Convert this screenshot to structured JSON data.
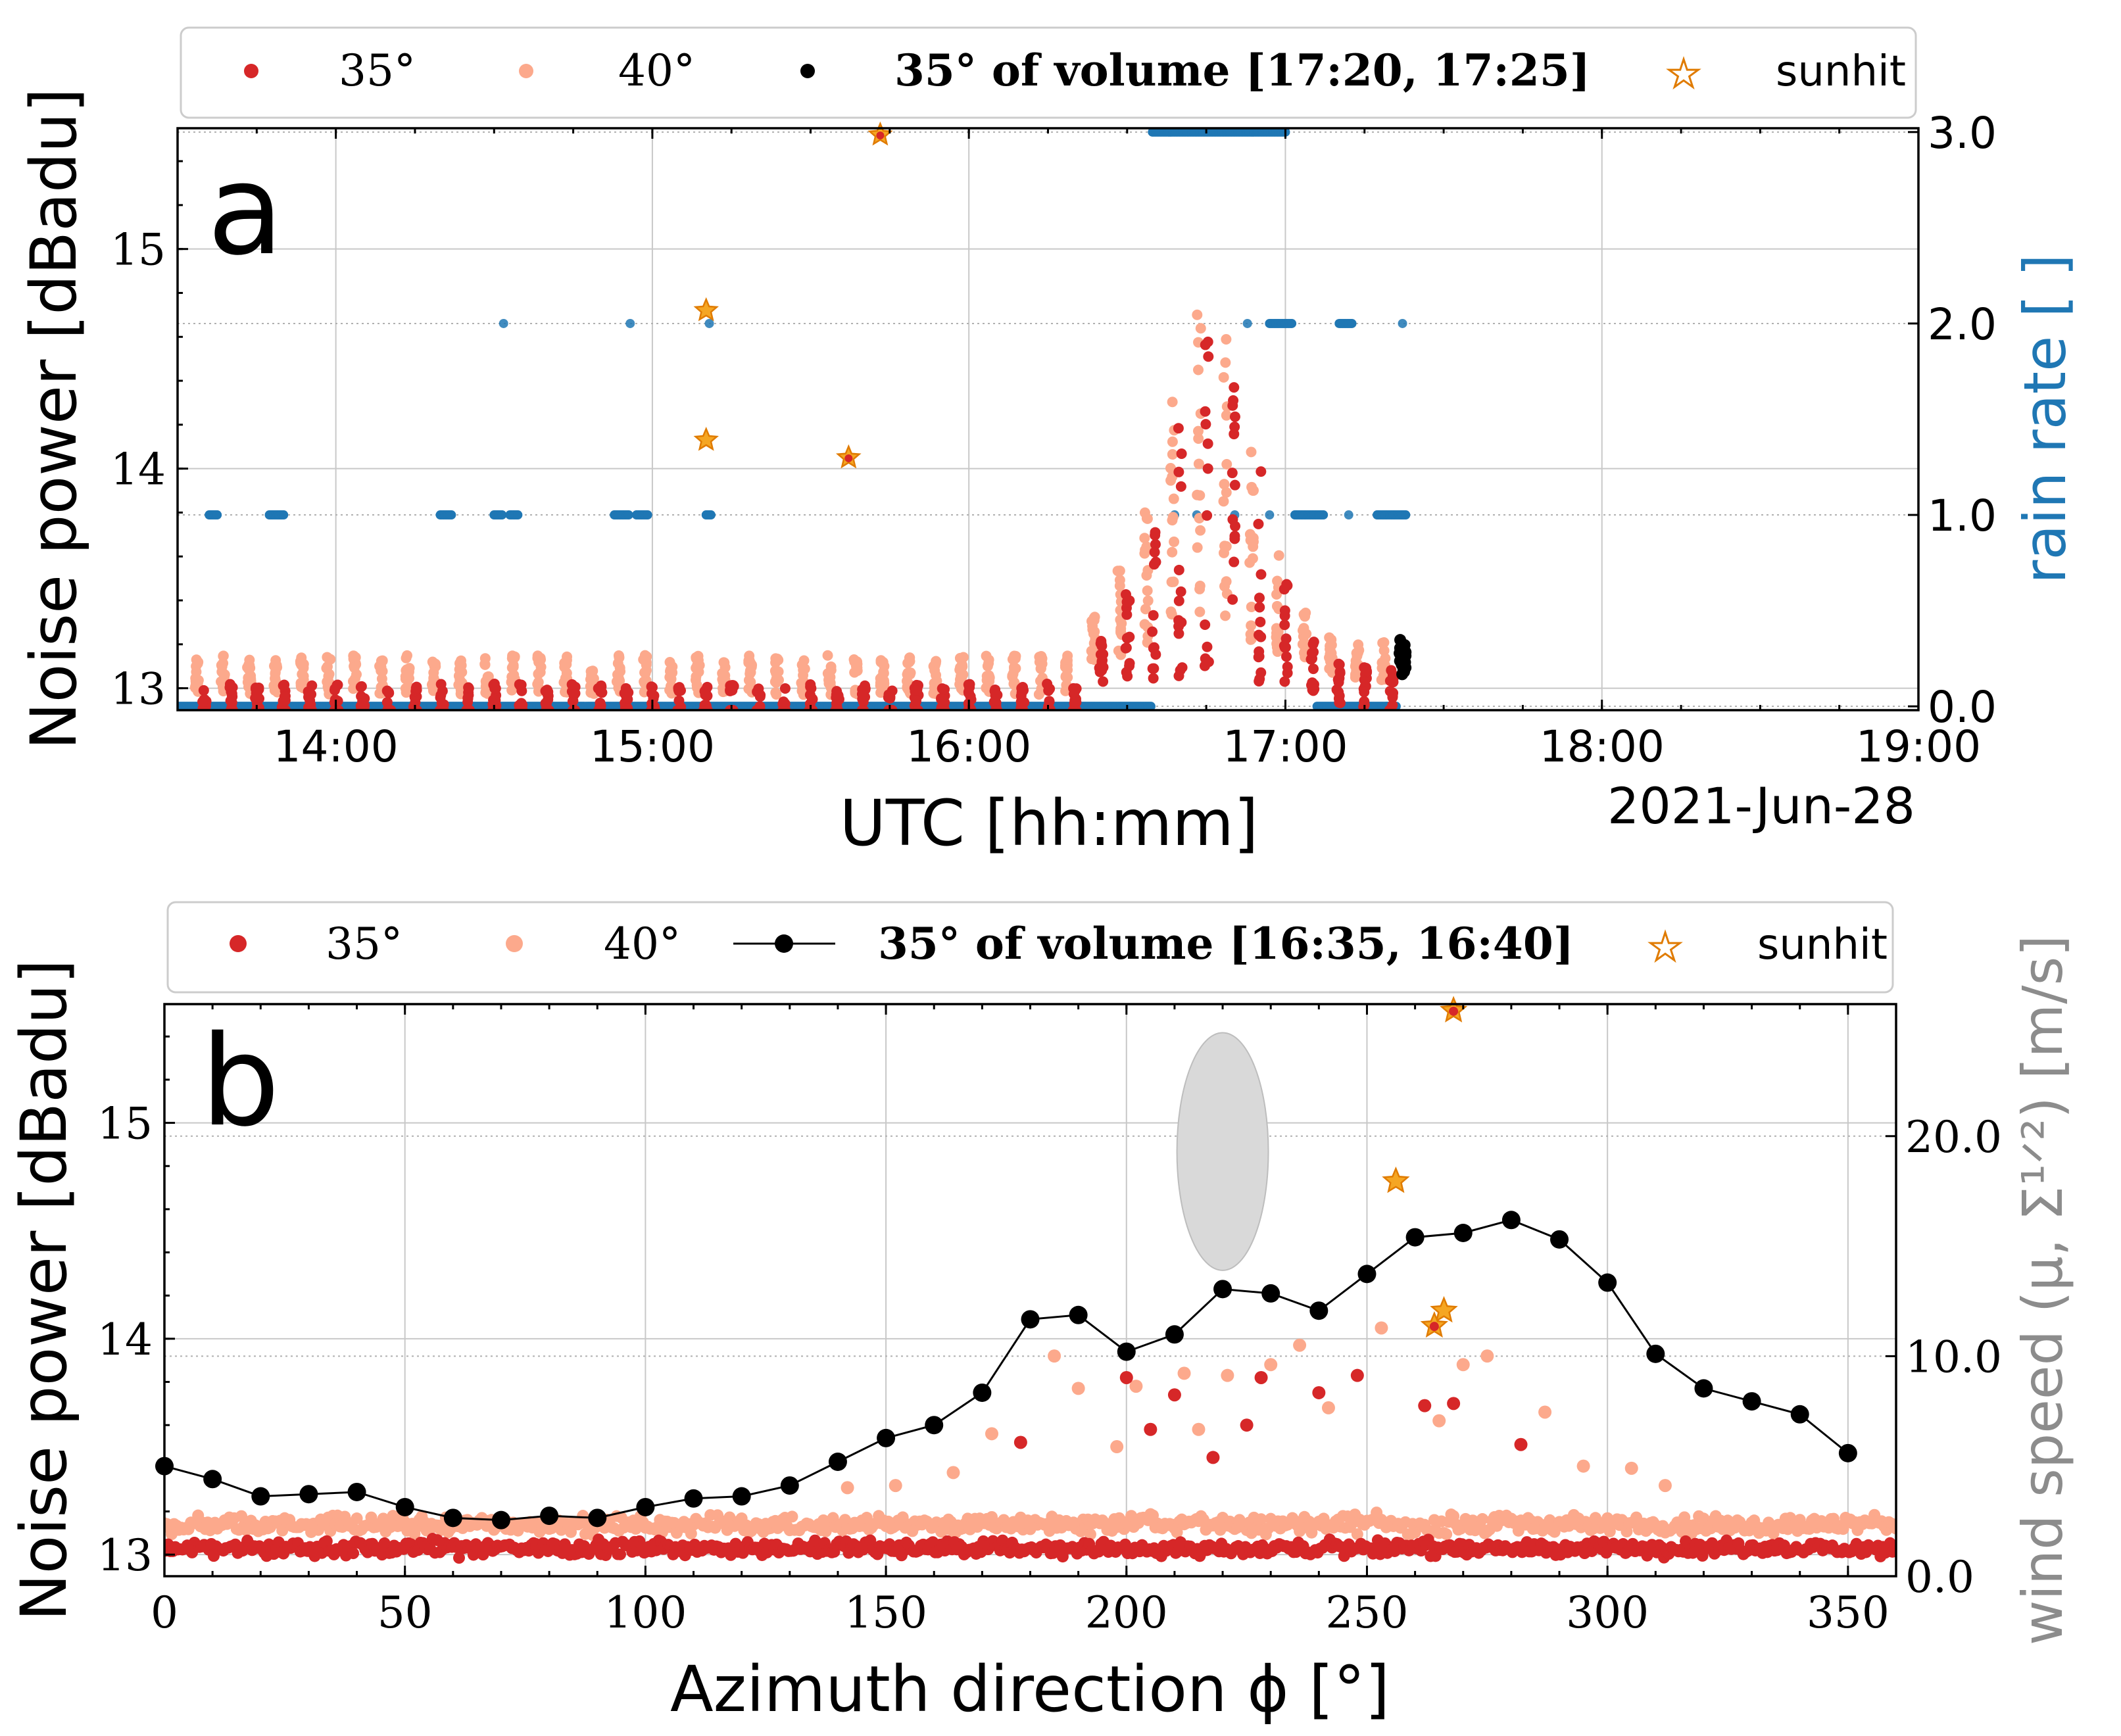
{
  "colors": {
    "red35": "#d62728",
    "salmon40": "#fca98c",
    "black": "#000000",
    "rain": "#1f77b4",
    "wind": "#8c8c8c",
    "sun_fill": "#f5a623",
    "sun_edge": "#e07b00",
    "ellipse": "#d9d9d9"
  },
  "chart_data": [
    {
      "panel": "a",
      "type": "scatter",
      "panel_label": "a",
      "xlabel": "UTC [hh:mm]",
      "ylabel": "Noise power [dBadu]",
      "y2label": "rain rate [ ]",
      "date_label": "2021-Jun-28",
      "xlim": [
        13.5,
        19.0
      ],
      "ylim": [
        12.9,
        15.55
      ],
      "y2lim": [
        -0.02,
        3.02
      ],
      "xticks": [
        14,
        15,
        16,
        17,
        18,
        19
      ],
      "xtick_labels": [
        "14:00",
        "15:00",
        "16:00",
        "17:00",
        "18:00",
        "19:00"
      ],
      "yticks": [
        13,
        14,
        15
      ],
      "ytick_labels": [
        "13",
        "14",
        "15"
      ],
      "y2ticks": [
        0.0,
        1.0,
        2.0,
        3.0
      ],
      "y2tick_labels": [
        "0.0",
        "1.0",
        "2.0",
        "3.0"
      ],
      "legend": {
        "s35": "35°",
        "s40": "40°",
        "vol": "35° of volume [17:20, 17:25]",
        "sun": "sunhit"
      },
      "noise_profile": [
        [
          13.5,
          13.05
        ],
        [
          16.3,
          13.05
        ],
        [
          16.45,
          13.4
        ],
        [
          16.55,
          13.75
        ],
        [
          16.65,
          14.4
        ],
        [
          16.72,
          14.75
        ],
        [
          16.8,
          14.5
        ],
        [
          16.9,
          13.95
        ],
        [
          17.0,
          13.35
        ],
        [
          17.1,
          13.15
        ],
        [
          17.37,
          13.1
        ]
      ],
      "volume_35": {
        "x": 17.37,
        "ymin": 13.05,
        "ymax": 13.22
      },
      "sunhits": [
        {
          "x": 15.17,
          "y": 14.72,
          "hit35": false
        },
        {
          "x": 15.17,
          "y": 14.13,
          "hit35": false
        },
        {
          "x": 15.62,
          "y": 14.05,
          "hit35": true
        },
        {
          "x": 15.72,
          "y": 15.52,
          "hit35": true
        }
      ],
      "rain_segments": [
        {
          "from": 13.5,
          "to": 16.58,
          "value": 0.0
        },
        {
          "from": 17.1,
          "to": 17.35,
          "value": 0.0
        },
        {
          "from": 16.58,
          "to": 17.0,
          "value": 3.0
        },
        {
          "from": 13.6,
          "to": 13.63,
          "value": 1.0
        },
        {
          "from": 13.79,
          "to": 13.84,
          "value": 1.0
        },
        {
          "from": 14.33,
          "to": 14.37,
          "value": 1.0
        },
        {
          "from": 14.5,
          "to": 14.53,
          "value": 1.0
        },
        {
          "from": 14.55,
          "to": 14.58,
          "value": 1.0
        },
        {
          "from": 14.88,
          "to": 14.93,
          "value": 1.0
        },
        {
          "from": 14.95,
          "to": 14.99,
          "value": 1.0
        },
        {
          "from": 15.17,
          "to": 15.19,
          "value": 1.0
        },
        {
          "from": 17.03,
          "to": 17.12,
          "value": 1.0
        },
        {
          "from": 17.29,
          "to": 17.38,
          "value": 1.0
        },
        {
          "from": 16.95,
          "to": 17.02,
          "value": 2.0
        },
        {
          "from": 17.17,
          "to": 17.21,
          "value": 2.0
        }
      ],
      "rain_points": [
        [
          14.53,
          2.0
        ],
        [
          14.93,
          2.0
        ],
        [
          15.18,
          2.0
        ],
        [
          16.88,
          2.0
        ],
        [
          17.37,
          2.0
        ],
        [
          16.65,
          1.0
        ],
        [
          16.72,
          1.0
        ],
        [
          16.84,
          1.0
        ],
        [
          16.95,
          1.0
        ],
        [
          17.2,
          1.0
        ],
        [
          17.17,
          0.0
        ],
        [
          17.23,
          0.0
        ],
        [
          17.32,
          0.0
        ]
      ]
    },
    {
      "panel": "b",
      "type": "scatter",
      "panel_label": "b",
      "xlabel": "Azimuth direction ϕ [°]",
      "ylabel": "Noise power [dBadu]",
      "y2label": "wind speed (μ, Σ¹ᐟ²) [m/s]",
      "xlim": [
        0,
        360
      ],
      "ylim": [
        12.9,
        15.55
      ],
      "y2lim": [
        0.0,
        26.0
      ],
      "xticks": [
        0,
        50,
        100,
        150,
        200,
        250,
        300,
        350
      ],
      "xtick_labels": [
        "0",
        "50",
        "100",
        "150",
        "200",
        "250",
        "300",
        "350"
      ],
      "yticks": [
        13,
        14,
        15
      ],
      "ytick_labels": [
        "13",
        "14",
        "15"
      ],
      "y2ticks": [
        0.0,
        10.0,
        20.0
      ],
      "y2tick_labels": [
        "0.0",
        "10.0",
        "20.0"
      ],
      "legend": {
        "s35": "35°",
        "s40": "40°",
        "vol": "35° of volume [16:35, 16:40]",
        "sun": "sunhit"
      },
      "volume_line": {
        "x": [
          0,
          10,
          20,
          30,
          40,
          50,
          60,
          70,
          80,
          90,
          100,
          110,
          120,
          130,
          140,
          150,
          160,
          170,
          180,
          190,
          200,
          210,
          220,
          230,
          240,
          250,
          260,
          270,
          280,
          290,
          300,
          310,
          320,
          330,
          340,
          350
        ],
        "y": [
          13.41,
          13.35,
          13.27,
          13.28,
          13.29,
          13.22,
          13.17,
          13.16,
          13.18,
          13.17,
          13.22,
          13.26,
          13.27,
          13.32,
          13.43,
          13.54,
          13.6,
          13.75,
          14.09,
          14.11,
          13.94,
          14.02,
          14.23,
          14.21,
          14.13,
          14.3,
          14.47,
          14.49,
          14.55,
          14.46,
          14.26,
          13.93,
          13.77,
          13.71,
          13.65,
          13.47
        ]
      },
      "wind_ellipse": {
        "x_center": 220,
        "y_center": 19.3,
        "x_width": 19,
        "y_height": 10.8
      },
      "sunhits": [
        {
          "x": 268,
          "y": 15.52,
          "hit35": true
        },
        {
          "x": 256,
          "y": 14.73,
          "hit35": false
        },
        {
          "x": 266,
          "y": 14.13,
          "hit35": false
        },
        {
          "x": 264,
          "y": 14.06,
          "hit35": true
        }
      ],
      "outliers_35": [
        [
          178,
          13.52
        ],
        [
          200,
          13.82
        ],
        [
          205,
          13.58
        ],
        [
          210,
          13.74
        ],
        [
          218,
          13.45
        ],
        [
          225,
          13.6
        ],
        [
          228,
          13.82
        ],
        [
          240,
          13.75
        ],
        [
          248,
          13.83
        ],
        [
          262,
          13.69
        ],
        [
          268,
          13.7
        ],
        [
          282,
          13.51
        ]
      ],
      "outliers_40": [
        [
          142,
          13.31
        ],
        [
          152,
          13.32
        ],
        [
          164,
          13.38
        ],
        [
          172,
          13.56
        ],
        [
          185,
          13.92
        ],
        [
          190,
          13.77
        ],
        [
          198,
          13.5
        ],
        [
          202,
          13.78
        ],
        [
          212,
          13.84
        ],
        [
          215,
          13.58
        ],
        [
          221,
          13.83
        ],
        [
          230,
          13.88
        ],
        [
          236,
          13.97
        ],
        [
          242,
          13.68
        ],
        [
          253,
          14.05
        ],
        [
          265,
          13.62
        ],
        [
          270,
          13.88
        ],
        [
          275,
          13.92
        ],
        [
          287,
          13.66
        ],
        [
          295,
          13.41
        ],
        [
          305,
          13.4
        ],
        [
          312,
          13.32
        ]
      ]
    }
  ]
}
